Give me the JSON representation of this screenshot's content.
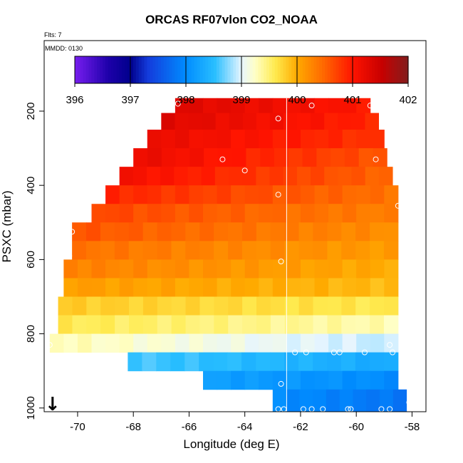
{
  "title": "ORCAS RF07vlon CO2_NOAA",
  "flights_note": "Flts: 7",
  "date_note": "MMDD: 0130",
  "chart_data": {
    "type": "heatmap",
    "title": "ORCAS RF07vlon CO2_NOAA",
    "xlabel": "Longitude (deg E)",
    "ylabel": "PSXC (mbar)",
    "xlim": [
      -71.2,
      -57.5
    ],
    "ylim": [
      1010,
      10
    ],
    "x_ticks": [
      -70,
      -68,
      -66,
      -64,
      -62,
      -60,
      -58
    ],
    "y_ticks": [
      200,
      400,
      600,
      800,
      1000
    ],
    "colorbar": {
      "min": 396,
      "max": 402,
      "ticks": [
        396,
        397,
        398,
        399,
        400,
        401,
        402
      ]
    },
    "reference_longitude": -62.5,
    "direction_marker": {
      "lon": -70.9,
      "symbol": "↓"
    },
    "rows": [
      {
        "p0": 165,
        "p1": 205,
        "lon0": -66.5,
        "lon1": -59.5,
        "v0": 401.3,
        "v1": 401.0
      },
      {
        "p0": 205,
        "p1": 250,
        "lon0": -67.0,
        "lon1": -59.2,
        "v0": 401.3,
        "v1": 400.9
      },
      {
        "p0": 250,
        "p1": 300,
        "lon0": -67.5,
        "lon1": -59.0,
        "v0": 401.2,
        "v1": 400.8
      },
      {
        "p0": 300,
        "p1": 350,
        "lon0": -68.0,
        "lon1": -58.9,
        "v0": 401.2,
        "v1": 400.6
      },
      {
        "p0": 350,
        "p1": 400,
        "lon0": -68.5,
        "lon1": -58.7,
        "v0": 401.1,
        "v1": 400.5
      },
      {
        "p0": 400,
        "p1": 450,
        "lon0": -69.0,
        "lon1": -58.5,
        "v0": 400.9,
        "v1": 400.4
      },
      {
        "p0": 450,
        "p1": 500,
        "lon0": -69.5,
        "lon1": -58.5,
        "v0": 400.7,
        "v1": 400.3
      },
      {
        "p0": 500,
        "p1": 550,
        "lon0": -70.2,
        "lon1": -58.5,
        "v0": 400.6,
        "v1": 400.2
      },
      {
        "p0": 550,
        "p1": 600,
        "lon0": -70.2,
        "lon1": -58.5,
        "v0": 400.4,
        "v1": 400.1
      },
      {
        "p0": 600,
        "p1": 650,
        "lon0": -70.5,
        "lon1": -58.5,
        "v0": 400.3,
        "v1": 400.0
      },
      {
        "p0": 650,
        "p1": 700,
        "lon0": -70.5,
        "lon1": -58.5,
        "v0": 400.1,
        "v1": 399.9
      },
      {
        "p0": 700,
        "p1": 750,
        "lon0": -70.7,
        "lon1": -58.5,
        "v0": 399.8,
        "v1": 399.6
      },
      {
        "p0": 750,
        "p1": 800,
        "lon0": -70.7,
        "lon1": -58.5,
        "v0": 399.6,
        "v1": 399.3
      },
      {
        "p0": 800,
        "p1": 850,
        "lon0": -71.0,
        "lon1": -58.5,
        "v0": 399.3,
        "v1": 398.9
      },
      {
        "p0": 850,
        "p1": 900,
        "lon0": -68.2,
        "lon1": -58.5,
        "v0": 398.6,
        "v1": 398.3
      },
      {
        "p0": 900,
        "p1": 950,
        "lon0": -65.5,
        "lon1": -58.5,
        "v0": 398.2,
        "v1": 398.0
      },
      {
        "p0": 950,
        "p1": 1010,
        "lon0": -63.0,
        "lon1": -58.2,
        "v0": 398.0,
        "v1": 397.8
      }
    ],
    "points": [
      [
        -66.4,
        180
      ],
      [
        -62.8,
        220
      ],
      [
        -61.6,
        185
      ],
      [
        -59.5,
        185
      ],
      [
        -64.8,
        330
      ],
      [
        -64.0,
        360
      ],
      [
        -59.3,
        330
      ],
      [
        -62.8,
        425
      ],
      [
        -58.5,
        455
      ],
      [
        -70.2,
        525
      ],
      [
        -70.3,
        590
      ],
      [
        -62.7,
        605
      ],
      [
        -71.0,
        830
      ],
      [
        -61.8,
        850
      ],
      [
        -62.2,
        850
      ],
      [
        -60.8,
        850
      ],
      [
        -60.6,
        850
      ],
      [
        -59.7,
        850
      ],
      [
        -58.8,
        830
      ],
      [
        -58.7,
        850
      ],
      [
        -62.7,
        935
      ],
      [
        -62.8,
        1003
      ],
      [
        -62.6,
        1003
      ],
      [
        -61.9,
        1003
      ],
      [
        -61.6,
        1003
      ],
      [
        -61.2,
        1003
      ],
      [
        -60.3,
        1003
      ],
      [
        -60.2,
        1003
      ],
      [
        -59.1,
        1003
      ],
      [
        -58.8,
        1003
      ],
      [
        -58.1,
        985
      ]
    ]
  }
}
